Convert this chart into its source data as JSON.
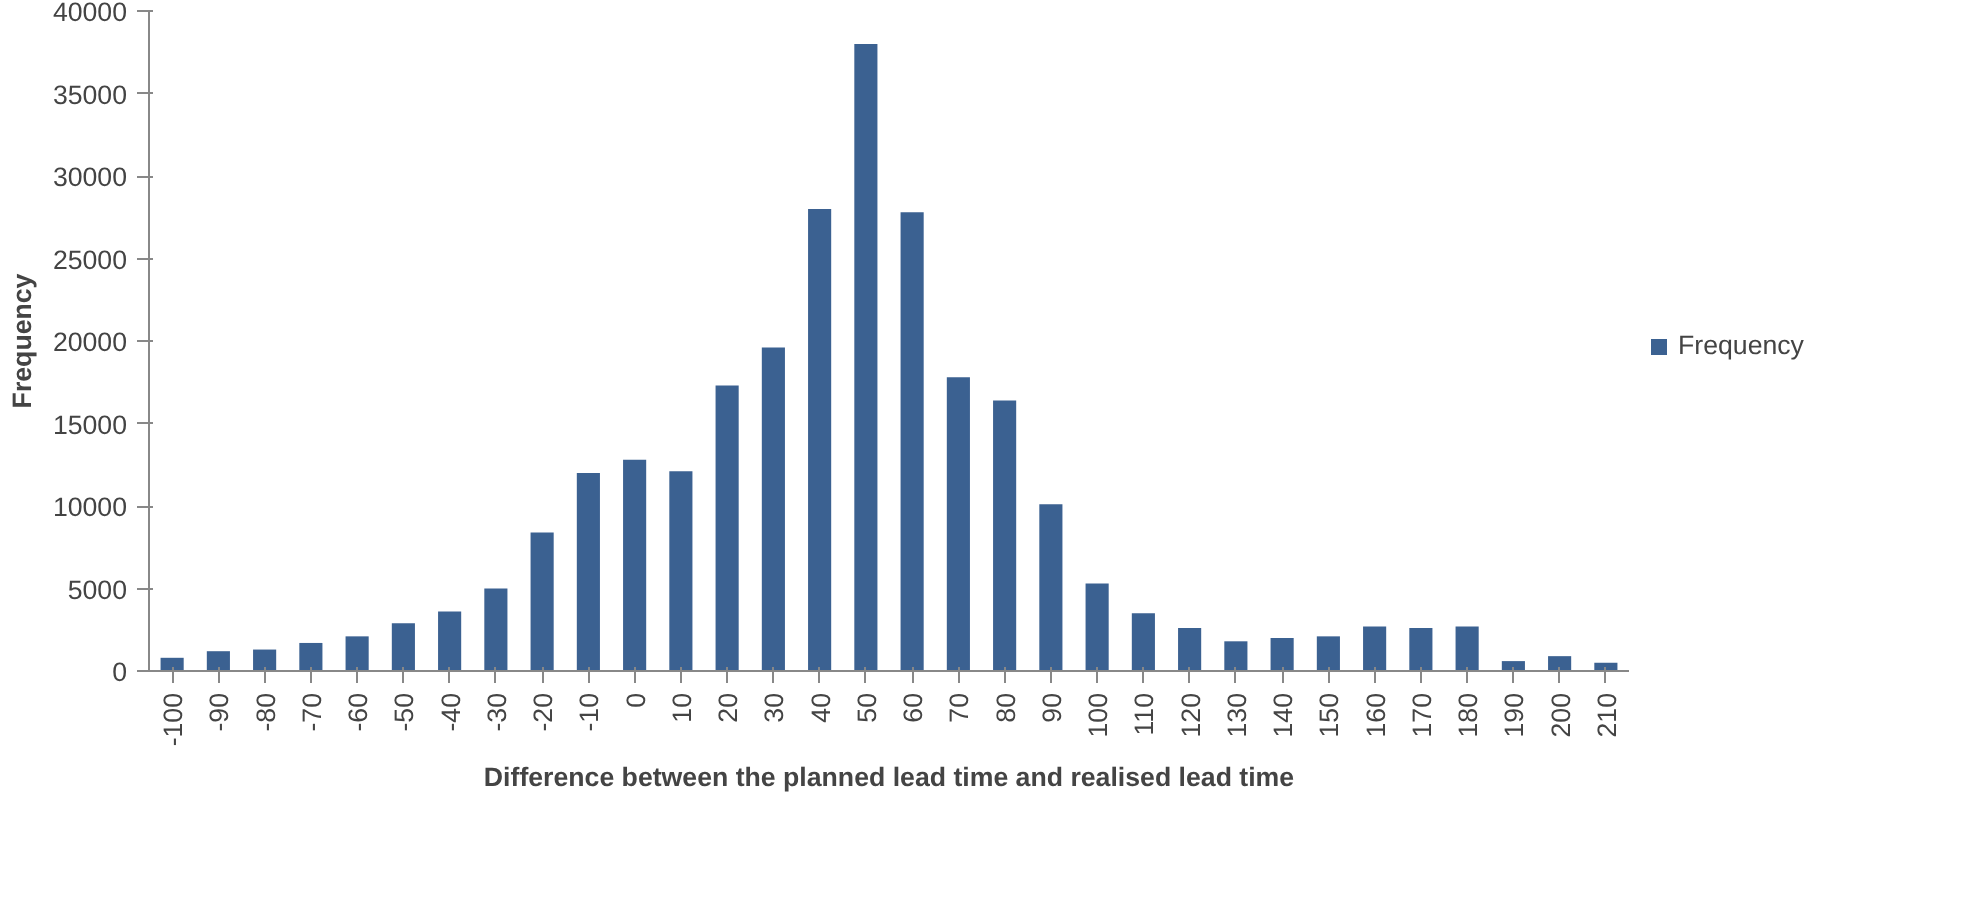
{
  "chart_data": {
    "type": "bar",
    "xlabel": "Difference between the planned lead time and realised lead time",
    "ylabel": "Frequency",
    "categories": [
      "-100",
      "-90",
      "-80",
      "-70",
      "-60",
      "-50",
      "-40",
      "-30",
      "-20",
      "-10",
      "0",
      "10",
      "20",
      "30",
      "40",
      "50",
      "60",
      "70",
      "80",
      "90",
      "100",
      "110",
      "120",
      "130",
      "140",
      "150",
      "160",
      "170",
      "180",
      "190",
      "200",
      "210"
    ],
    "series": [
      {
        "name": "Frequency",
        "color": "#3b6191",
        "values": [
          800,
          1200,
          1300,
          1700,
          2100,
          2900,
          3600,
          5000,
          8400,
          12000,
          12800,
          12100,
          17300,
          19600,
          28000,
          38000,
          27800,
          17800,
          16400,
          10100,
          5300,
          3500,
          2600,
          1800,
          2000,
          2100,
          2700,
          2600,
          2700,
          600,
          900,
          500
        ]
      }
    ],
    "ylim": [
      0,
      40000
    ],
    "yticks": [
      0,
      5000,
      10000,
      15000,
      20000,
      25000,
      30000,
      35000,
      40000
    ],
    "grid": false,
    "legend": "right"
  }
}
